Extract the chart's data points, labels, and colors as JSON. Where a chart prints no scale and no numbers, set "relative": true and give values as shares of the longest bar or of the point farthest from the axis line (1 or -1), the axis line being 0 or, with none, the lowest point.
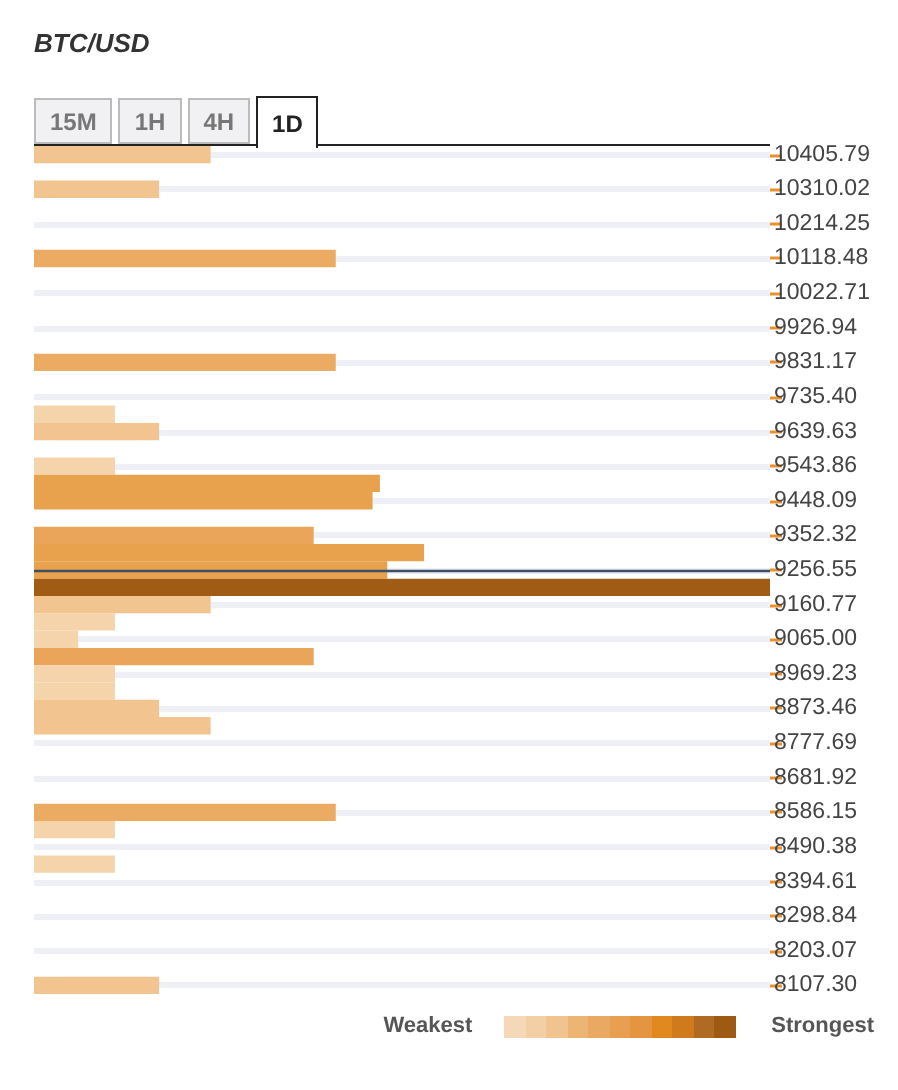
{
  "chart_data": {
    "type": "bar",
    "orientation": "horizontal",
    "relative": true,
    "title": "BTC/USD",
    "annotations": [
      "15M",
      "1H",
      "4H",
      "1D",
      "Weakest",
      "Strongest"
    ],
    "x": [
      10405.79,
      10310.02,
      10118.48,
      9831.17,
      9687.52,
      9639.63,
      9543.86,
      9495.98,
      9448.09,
      9352.32,
      9304.44,
      9256.55,
      9208.66,
      9160.77,
      9112.89,
      9065.0,
      9017.12,
      8969.23,
      8921.35,
      8873.46,
      8825.58,
      8586.15,
      8538.27,
      8442.5,
      8107.3
    ],
    "values": [
      0.24,
      0.17,
      0.41,
      0.41,
      0.11,
      0.17,
      0.11,
      0.47,
      0.46,
      0.38,
      0.53,
      0.48,
      1,
      0.24,
      0.11,
      0.06,
      0.38,
      0.11,
      0.11,
      0.17,
      0.24,
      0.41,
      0.11,
      0.11,
      0.17
    ],
    "colors": [
      "#f2c48f",
      "#f2c48f",
      "#ebab62",
      "#ebab62",
      "#f5d3ab",
      "#f2c48f",
      "#f5d3ab",
      "#e8a24e",
      "#e8a24e",
      "#eaa55a",
      "#e8a24e",
      "#e8a24e",
      "#a05c14",
      "#f2c48f",
      "#f5d3ab",
      "#f5d3ab",
      "#eaa55a",
      "#f5d3ab",
      "#f5d3ab",
      "#f2c48f",
      "#f2c48f",
      "#ebab62",
      "#f5d3ab",
      "#f5d3ab",
      "#f2c48f"
    ],
    "ylim": [
      8083.4,
      10429.7
    ],
    "yticks": [
      10405.79,
      10310.02,
      10214.25,
      10118.48,
      10022.71,
      9926.94,
      9831.17,
      {
        "value": 9735.4,
        "label": "9735.40"
      },
      9639.63,
      9543.86,
      9448.09,
      9352.32,
      9256.55,
      9160.77,
      {
        "value": 9065,
        "label": "9065.00"
      },
      8969.23,
      8873.46,
      8777.69,
      8681.92,
      8586.15,
      8490.38,
      8394.61,
      8298.84,
      8203.07,
      {
        "value": 8107.3,
        "label": "8107.30"
      }
    ],
    "ref_lines": [
      {
        "axis": "y",
        "value": 9256.55,
        "color": "#3d4f66"
      }
    ],
    "grid": "y"
  }
}
